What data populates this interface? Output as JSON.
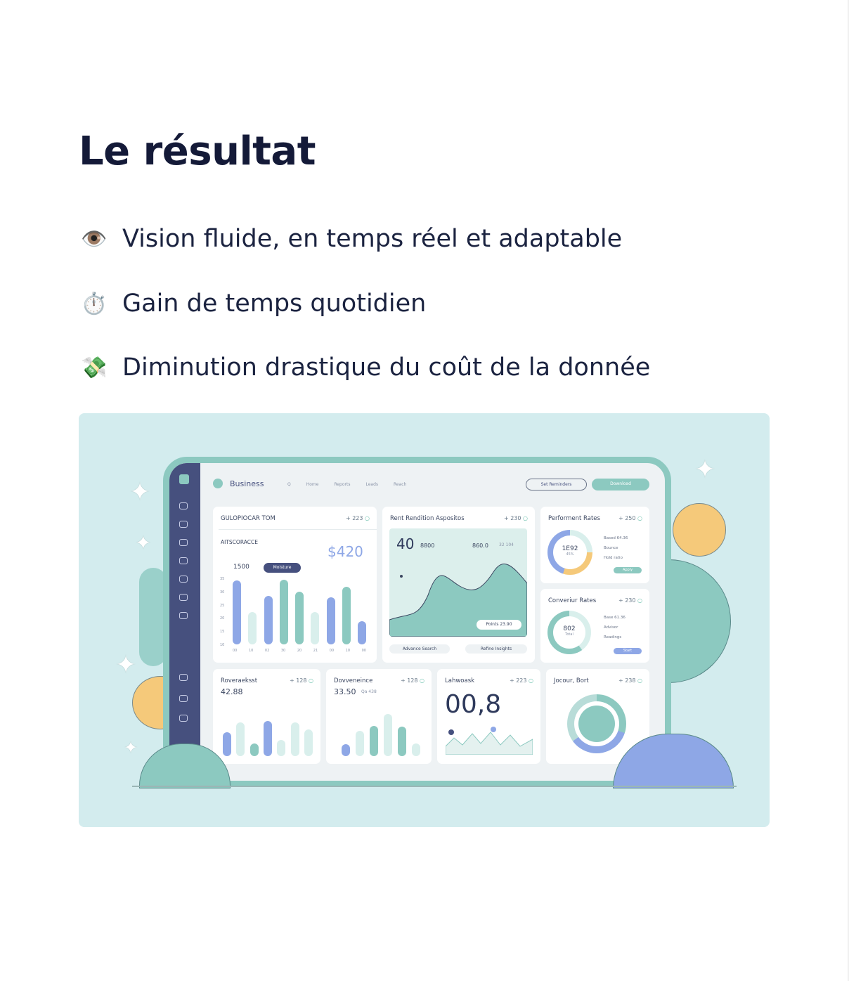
{
  "title": "Le résultat",
  "bullets": [
    {
      "icon": "eye-icon",
      "emoji": "👁️",
      "text": "Vision fluide, en temps réel et adaptable"
    },
    {
      "icon": "stopwatch-icon",
      "emoji": "⏱️",
      "text": "Gain de temps quotidien"
    },
    {
      "icon": "money-wings-icon",
      "emoji": "💸",
      "text": "Diminution drastique du coût de la donnée"
    }
  ],
  "dashboard": {
    "brand": "Business",
    "nav": [
      "Q",
      "Home",
      "Reports",
      "Leads",
      "Reach"
    ],
    "header_buttons": [
      "Set Reminders",
      "Download"
    ],
    "colors": {
      "accent": "#8cc9c0",
      "sidebar": "#46507e",
      "blue": "#8ea7e6",
      "light": "#d9efec",
      "yellow": "#f5c97a"
    },
    "cards": [
      {
        "title": "GULOPIOCAR TOM",
        "value": "+ 223",
        "sub": "AITSCORACCE",
        "big": "$420",
        "stat": "1500",
        "pill": "Moisture",
        "bars": [
          95,
          48,
          72,
          96,
          78,
          48,
          70,
          86,
          34
        ],
        "ylabels": [
          "35",
          "30",
          "25",
          "20",
          "15",
          "10"
        ],
        "xlabels": [
          "00",
          "10",
          "02",
          "30",
          "20",
          "21",
          "00",
          "10",
          "00"
        ]
      },
      {
        "title": "Rent Rendition Aspositos",
        "value": "+ 230",
        "big": "40",
        "stat1": "8800",
        "stat2": "860.0",
        "stat3": "32 104",
        "pill": "Points 23.90",
        "foot": [
          "Advance Search",
          "Refine Insights"
        ]
      },
      {
        "title": "Performent Rates",
        "value": "+ 250",
        "center": "1E92",
        "center_sub": "45%",
        "lines": [
          "Based 64.36",
          "Bounce",
          "Hold ratio"
        ],
        "btn": "Apply"
      },
      {
        "title": "Converiur Rates",
        "value": "+ 230",
        "center": "802",
        "center_sub": "Total",
        "lines": [
          "Base 61.36",
          "Advisor",
          "Readings"
        ],
        "btn": "Start"
      },
      {
        "title": "Roveraeksst",
        "value": "+ 128",
        "big": "42.88",
        "bars": [
          55,
          78,
          30,
          82,
          38,
          78,
          62
        ]
      },
      {
        "title": "Dovveneince",
        "value": "+ 128",
        "big": "33.50",
        "big_sub": "Qa 438",
        "bars": [
          28,
          60,
          72,
          100,
          70,
          30
        ]
      },
      {
        "title": "Lahwoask",
        "value": "+ 223",
        "big": "00,8"
      },
      {
        "title": "Jocour, Bort",
        "value": "+ 238"
      }
    ]
  }
}
